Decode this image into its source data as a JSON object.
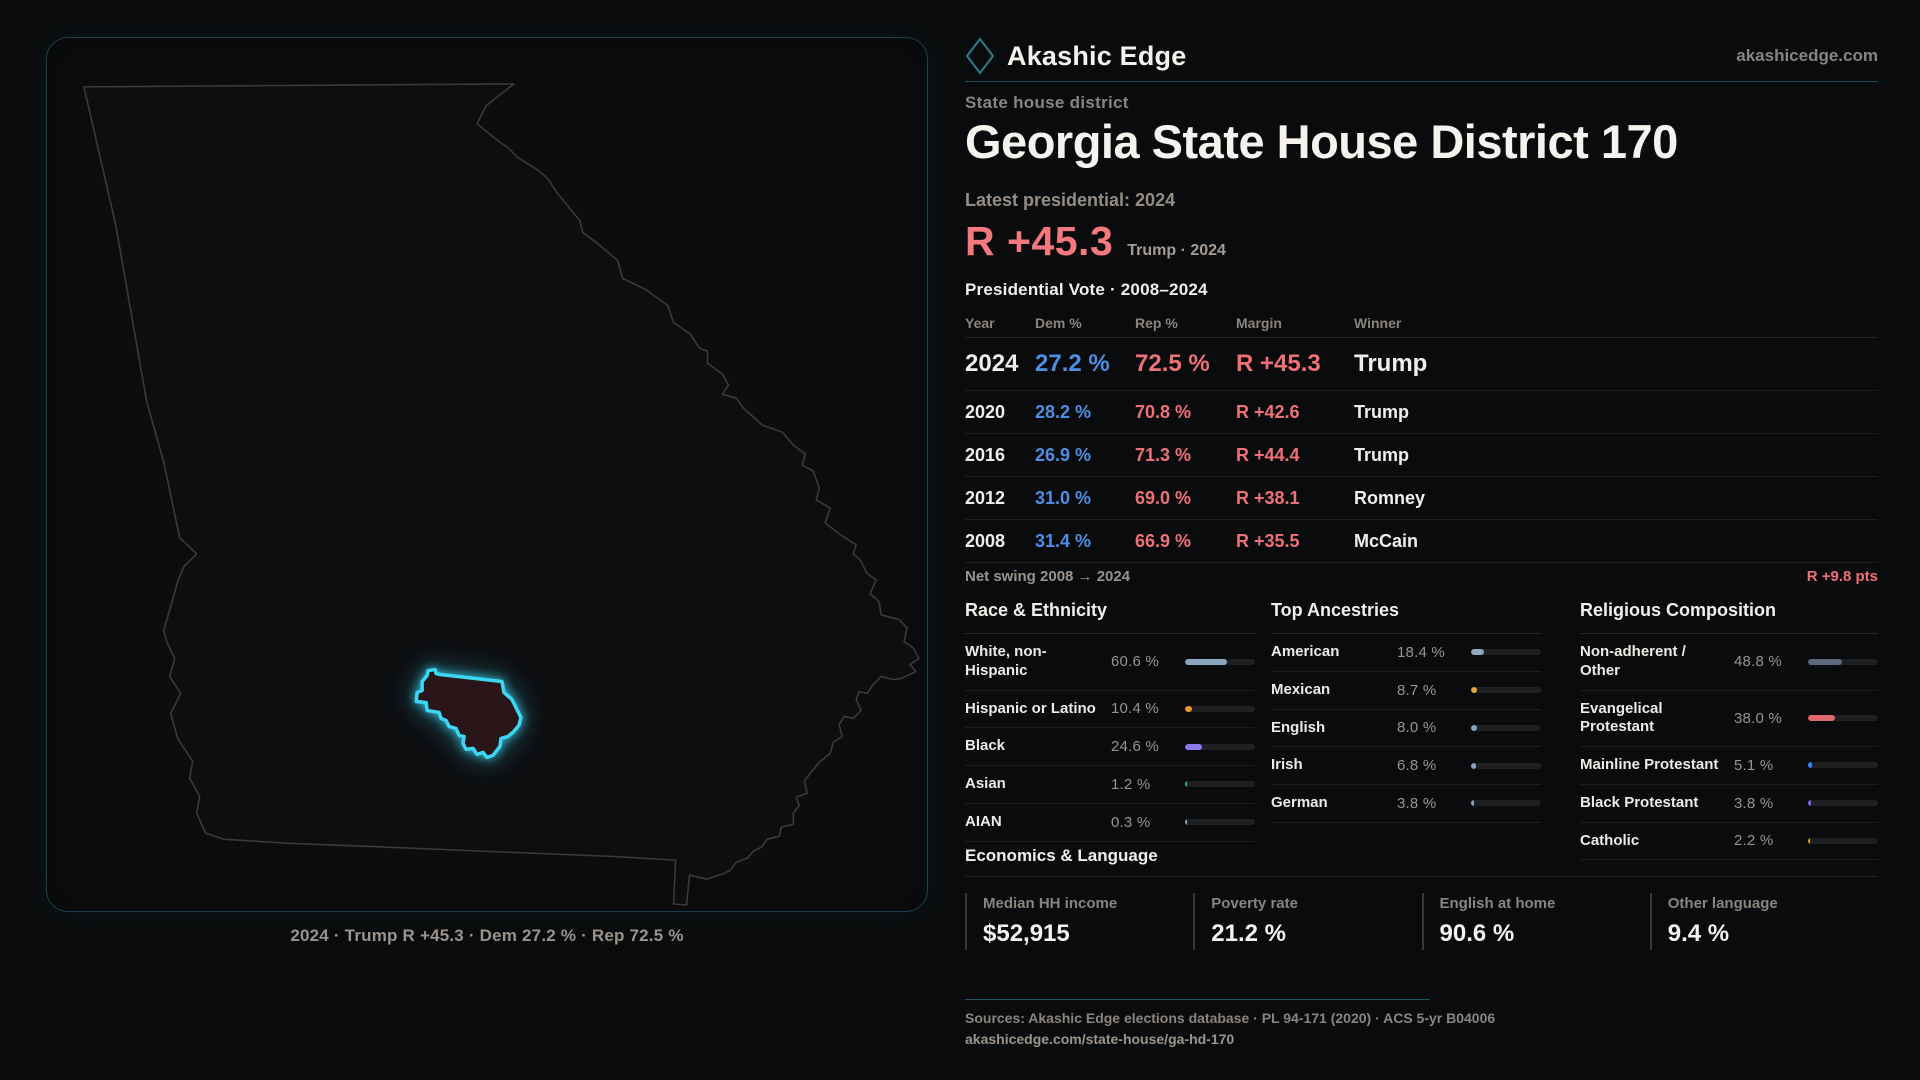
{
  "colors": {
    "accent_cyan": "#3cd7f4",
    "panel_border_teal": "#16424c",
    "divider_teal": "#1c4f59",
    "dem_blue": "#4e8fe3",
    "rep_red": "#ee7177",
    "margin_red": "#f3797e",
    "text_white": "#f2efea",
    "text_gray": "#8b847e"
  },
  "brand": {
    "name": "Akashic Edge",
    "domain": "akashicedge.com",
    "logo_icon": "diamond-outline"
  },
  "header": {
    "eyebrow": "State house district",
    "title": "Georgia State House District 170",
    "latest_label": "Latest presidential: 2024",
    "margin_value": "R +45.3",
    "margin_context": "Trump · 2024"
  },
  "map": {
    "caption": "2024 · Trump R +45.3 · Dem 27.2 % · Rep 72.5 %"
  },
  "table": {
    "title": "Presidential Vote · 2008–2024",
    "columns": {
      "year": "Year",
      "dem": "Dem %",
      "rep": "Rep %",
      "margin": "Margin",
      "winner": "Winner"
    },
    "rows": [
      {
        "year": "2024",
        "dem": "27.2 %",
        "rep": "72.5 %",
        "margin": "R +45.3",
        "winner": "Trump"
      },
      {
        "year": "2020",
        "dem": "28.2 %",
        "rep": "70.8 %",
        "margin": "R +42.6",
        "winner": "Trump"
      },
      {
        "year": "2016",
        "dem": "26.9 %",
        "rep": "71.3 %",
        "margin": "R +44.4",
        "winner": "Trump"
      },
      {
        "year": "2012",
        "dem": "31.0 %",
        "rep": "69.0 %",
        "margin": "R +38.1",
        "winner": "Romney"
      },
      {
        "year": "2008",
        "dem": "31.4 %",
        "rep": "66.9 %",
        "margin": "R +35.5",
        "winner": "McCain"
      }
    ]
  },
  "net_swing": {
    "label": "Net swing 2008 → 2024",
    "value": "R +9.8 pts"
  },
  "race": {
    "title": "Race & Ethnicity",
    "rows": [
      {
        "label": "White, non-Hispanic",
        "value": "60.6 %",
        "pct": 60.6,
        "color": "#8ca6c0"
      },
      {
        "label": "Hispanic or Latino",
        "value": "10.4 %",
        "pct": 10.4,
        "color": "#e8952f"
      },
      {
        "label": "Black",
        "value": "24.6 %",
        "pct": 24.6,
        "color": "#8b79ea"
      },
      {
        "label": "Asian",
        "value": "1.2 %",
        "pct": 1.2,
        "color": "#2fc493"
      },
      {
        "label": "AIAN",
        "value": "0.3 %",
        "pct": 0.3,
        "color": "#8ca6c0"
      }
    ]
  },
  "ancestries": {
    "title": "Top Ancestries",
    "rows": [
      {
        "label": "American",
        "value": "18.4 %",
        "pct": 18.4,
        "color": "#93a7bd"
      },
      {
        "label": "Mexican",
        "value": "8.7 %",
        "pct": 8.7,
        "color": "#e8a33b"
      },
      {
        "label": "English",
        "value": "8.0 %",
        "pct": 8.0,
        "color": "#8ba3bb"
      },
      {
        "label": "Irish",
        "value": "6.8 %",
        "pct": 6.8,
        "color": "#8ba3bb"
      },
      {
        "label": "German",
        "value": "3.8 %",
        "pct": 3.8,
        "color": "#8ba3bb"
      }
    ]
  },
  "religion": {
    "title": "Religious Composition",
    "rows": [
      {
        "label": "Non-adherent / Other",
        "value": "48.8 %",
        "pct": 48.8,
        "color": "#5c6b7c"
      },
      {
        "label": "Evangelical Protestant",
        "value": "38.0 %",
        "pct": 38.0,
        "color": "#e0686e"
      },
      {
        "label": "Mainline Protestant",
        "value": "5.1 %",
        "pct": 5.1,
        "color": "#3b82f6"
      },
      {
        "label": "Black Protestant",
        "value": "3.8 %",
        "pct": 3.8,
        "color": "#7e5ff0"
      },
      {
        "label": "Catholic",
        "value": "2.2 %",
        "pct": 2.2,
        "color": "#d9a416"
      }
    ]
  },
  "economics": {
    "title": "Economics & Language",
    "stats": [
      {
        "label": "Median HH income",
        "value": "$52,915"
      },
      {
        "label": "Poverty rate",
        "value": "21.2 %"
      },
      {
        "label": "English at home",
        "value": "90.6 %"
      },
      {
        "label": "Other language",
        "value": "9.4 %"
      }
    ]
  },
  "footer": {
    "sources": "Sources: Akashic Edge elections database · PL 94-171 (2020) · ACS 5-yr B04006",
    "url": "akashicedge.com/state-house/ga-hd-170"
  }
}
